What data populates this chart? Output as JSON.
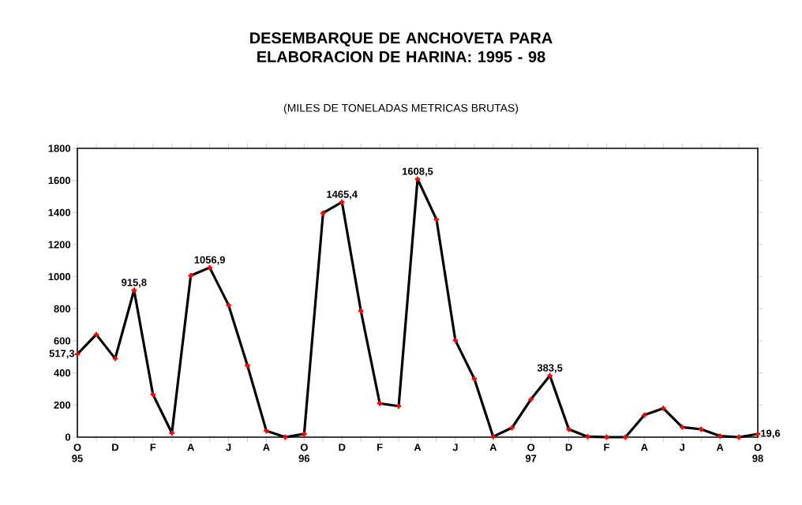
{
  "chart_data": {
    "type": "line",
    "title": "DESEMBARQUE DE ANCHOVETA PARA ELABORACION DE HARINA: 1995 - 98",
    "subtitle": "(MILES DE TONELADAS METRICAS BRUTAS)",
    "categories": [
      "O 95",
      null,
      "D",
      null,
      "F",
      null,
      "A",
      null,
      "J",
      null,
      "A",
      null,
      "O 96",
      null,
      "D",
      null,
      "F",
      null,
      "A",
      null,
      "J",
      null,
      "A",
      null,
      "O 97",
      null,
      "D",
      null,
      "F",
      null,
      "A",
      null,
      "J",
      null,
      "A",
      null,
      "O 98"
    ],
    "series": [
      {
        "color": "#000000",
        "values": [
          517.3,
          640,
          490,
          915.8,
          266,
          26,
          1007,
          1056.9,
          823,
          446,
          39,
          0,
          20,
          1397,
          1465.4,
          787,
          210,
          193,
          1608.5,
          1357,
          603,
          364,
          3,
          59,
          236,
          383.5,
          49,
          3,
          0,
          0,
          138,
          180,
          62,
          49,
          7,
          0,
          19.6
        ],
        "value_labels": [
          "517,3",
          null,
          null,
          "915,8",
          null,
          null,
          null,
          "1056,9",
          null,
          null,
          null,
          null,
          null,
          null,
          "1465,4",
          null,
          null,
          null,
          "1608,5",
          null,
          null,
          null,
          null,
          null,
          null,
          "383,5",
          null,
          null,
          null,
          null,
          null,
          null,
          null,
          null,
          null,
          null,
          "19,6"
        ]
      }
    ],
    "ylim": [
      0,
      1800
    ],
    "yticks": [
      0,
      200,
      400,
      600,
      800,
      1000,
      1200,
      1400,
      1600,
      1800
    ],
    "marker": "cross",
    "line_style": "solid",
    "grid": false
  }
}
